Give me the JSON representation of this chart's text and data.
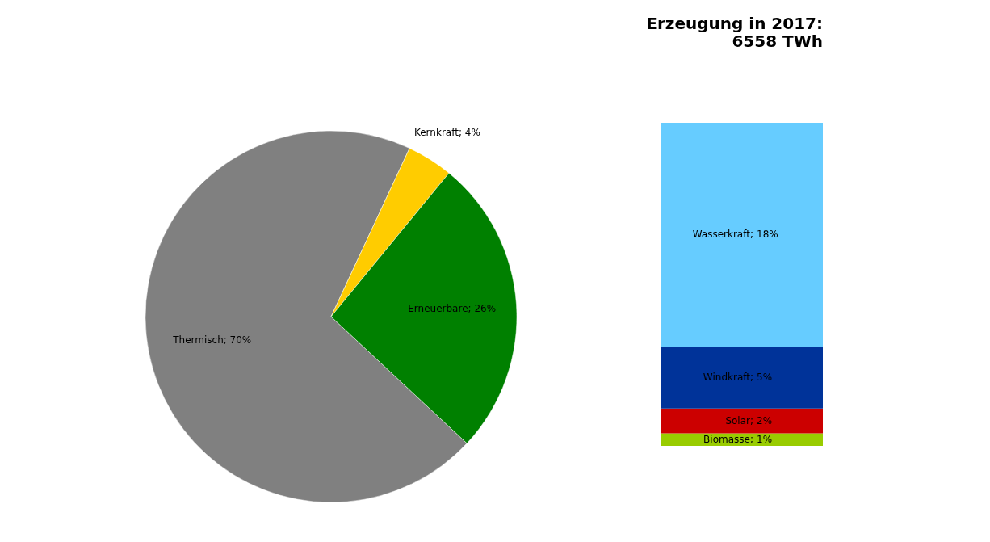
{
  "chart_data": [
    {
      "type": "pie",
      "categories": [
        "Thermisch",
        "Kernkraft",
        "Erneuerbare"
      ],
      "values": [
        70,
        4,
        26
      ],
      "colors": [
        "#808080",
        "#ffcc00",
        "#008000"
      ],
      "value_labels": [
        "70%",
        "4%",
        "26%"
      ]
    },
    {
      "type": "bar",
      "stacked": true,
      "title": [
        "Erzeugung in 2017:",
        "6558 TWh"
      ],
      "categories": [
        null
      ],
      "series": [
        {
          "name": "Biomasse;",
          "color": "#99cc00",
          "values": [
            1
          ],
          "value_labels": [
            "1%"
          ]
        },
        {
          "name": "Solar;",
          "color": "#cc0000",
          "values": [
            2
          ],
          "value_labels": [
            "2%"
          ]
        },
        {
          "name": "Windkraft;",
          "color": "#003399",
          "values": [
            5
          ],
          "value_labels": [
            "5%"
          ]
        },
        {
          "name": "Wasserkraft;",
          "color": "#66ccff",
          "values": [
            18
          ],
          "value_labels": [
            "18%"
          ]
        }
      ]
    }
  ]
}
